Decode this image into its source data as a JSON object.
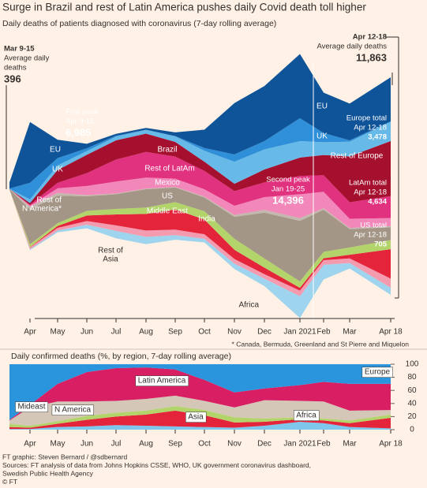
{
  "chart_data": [
    {
      "type": "stream",
      "title": "Surge in Brazil and rest of Latin America pushes daily Covid death toll higher",
      "subtitle": "Daily deaths of patients diagnosed with coronavirus (7-day rolling average)",
      "note": "* Canada, Bermuda, Greenland and St Pierre and Miquelon",
      "categories": [
        null,
        "Apr",
        "May",
        "Jun",
        "Jul",
        "Aug",
        "Sep",
        "Oct",
        "Nov",
        "Dec",
        "Jan 2021",
        "Feb",
        "Mar",
        "Apr 18"
      ],
      "callouts": [
        [
          "Mar 9-15",
          "Average daily",
          "deaths",
          "396"
        ],
        [
          "First peak",
          "Apr 9-15",
          "6,985"
        ],
        [
          "Apr 12-18",
          "Average daily deaths",
          "11,863"
        ],
        [
          "Second peak",
          "Jan 19-25",
          "14,396"
        ],
        [
          "Europe total",
          "Apr 12-18",
          "3,478"
        ],
        [
          "LatAm total",
          "Apr 12-18",
          "4,634"
        ],
        [
          "US total",
          "Apr 12-18",
          "705"
        ]
      ],
      "series": [
        {
          "labels": [
            [
              "Africa"
            ]
          ],
          "color": "#9fd4ee",
          "values": [
            0,
            50,
            100,
            200,
            400,
            400,
            250,
            200,
            300,
            400,
            1200,
            800,
            300,
            386
          ]
        },
        {
          "labels": [
            [
              "Rest of",
              "Asia"
            ]
          ],
          "color": "#f49bb0",
          "values": [
            5,
            100,
            150,
            200,
            300,
            350,
            300,
            250,
            250,
            250,
            300,
            250,
            250,
            500
          ]
        },
        {
          "labels": [
            [
              "India"
            ]
          ],
          "color": "#e3243b",
          "values": [
            0,
            20,
            100,
            300,
            600,
            900,
            1100,
            800,
            500,
            350,
            150,
            100,
            200,
            1600
          ]
        },
        {
          "labels": [
            [
              "Middle East"
            ]
          ],
          "color": "#b3d46a",
          "values": [
            5,
            150,
            150,
            250,
            300,
            350,
            400,
            450,
            600,
            500,
            350,
            350,
            400,
            500
          ]
        },
        {
          "labels": [
            [
              "US"
            ]
          ],
          "color": "#a39686",
          "values": [
            20,
            1900,
            1500,
            800,
            800,
            1000,
            800,
            750,
            1200,
            2500,
            3300,
            2300,
            1000,
            705
          ]
        },
        {
          "labels": [
            [
              "Rest of",
              "N America*"
            ]
          ],
          "color": "#c2b8ad",
          "values": [
            5,
            150,
            150,
            60,
            40,
            30,
            30,
            50,
            100,
            150,
            150,
            80,
            60,
            60
          ]
        },
        {
          "labels": [
            [
              "Mexico"
            ]
          ],
          "color": "#f288ba",
          "values": [
            0,
            50,
            250,
            500,
            650,
            600,
            450,
            400,
            500,
            700,
            1300,
            900,
            500,
            434
          ]
        },
        {
          "labels": [
            [
              "Rest of LatAm"
            ]
          ],
          "color": "#e0327f",
          "values": [
            0,
            50,
            300,
            700,
            1200,
            1400,
            1200,
            1000,
            800,
            800,
            1000,
            900,
            900,
            1200
          ]
        },
        {
          "labels": [
            [
              "Brazil"
            ]
          ],
          "color": "#a5102f",
          "values": [
            0,
            100,
            700,
            1000,
            1050,
            1000,
            800,
            500,
            400,
            700,
            1000,
            1100,
            2500,
            3000
          ]
        },
        {
          "labels": [
            [
              "Rest of Europe"
            ]
          ],
          "color": "#67b9e8",
          "values": [
            10,
            200,
            250,
            200,
            200,
            200,
            300,
            600,
            1200,
            1100,
            900,
            700,
            800,
            1048
          ]
        },
        {
          "labels": [
            [
              "UK"
            ],
            [
              "UK"
            ]
          ],
          "color": "#2f8fd8",
          "values": [
            20,
            900,
            400,
            150,
            50,
            10,
            20,
            150,
            400,
            450,
            1250,
            500,
            80,
            30
          ]
        },
        {
          "labels": [
            [
              "EU"
            ],
            [
              "EU"
            ]
          ],
          "color": "#0f5499",
          "values": [
            331,
            3315,
            1000,
            250,
            100,
            100,
            200,
            1000,
            2800,
            3000,
            3496,
            2200,
            2000,
            2400
          ]
        }
      ]
    },
    {
      "type": "stack100",
      "subtitle": "Daily confirmed deaths (%, by region, 7-day rolling average)",
      "categories": [
        null,
        "Apr",
        "May",
        "Jun",
        "Jul",
        "Aug",
        "Sep",
        "Oct",
        "Nov",
        "Dec",
        "Jan 2021",
        "Feb",
        "Mar",
        "Apr 18"
      ],
      "ylim": [
        0,
        100
      ],
      "yticks": [
        0,
        20,
        40,
        60,
        80,
        100
      ],
      "series": [
        {
          "name": "Africa",
          "color": "#7fc6ec",
          "values": [
            1,
            1,
            4,
            5,
            7,
            6,
            5,
            4,
            3,
            6,
            12,
            10,
            4,
            2
          ]
        },
        {
          "name": "Asia",
          "color": "#e3243b",
          "values": [
            3,
            2,
            5,
            10,
            13,
            17,
            24,
            18,
            8,
            6,
            4,
            4,
            6,
            16
          ]
        },
        {
          "name": "Mideast",
          "color": "#b3d46a",
          "values": [
            5,
            3,
            4,
            6,
            6,
            6,
            7,
            8,
            8,
            5,
            3,
            3,
            4,
            5
          ]
        },
        {
          "name": "N America",
          "color": "#d4c7b8",
          "values": [
            5,
            28,
            30,
            22,
            18,
            18,
            16,
            14,
            15,
            28,
            25,
            26,
            15,
            7
          ]
        },
        {
          "name": "Latin America",
          "color": "#d81f63",
          "values": [
            1,
            4,
            27,
            45,
            50,
            48,
            40,
            32,
            23,
            18,
            24,
            30,
            41,
            40
          ]
        },
        {
          "name": "Europe",
          "color": "#2a95dd",
          "values": [
            85,
            62,
            30,
            12,
            6,
            5,
            8,
            24,
            43,
            37,
            32,
            27,
            30,
            30
          ]
        }
      ]
    }
  ],
  "footer": [
    "FT graphic: Steven Bernard / @sdbernard",
    "Sources: FT analysis of data from Johns Hopkins CSSE, WHO, UK government coronavirus dashboard,",
    "Swedish Public Health Agency",
    "© FT"
  ]
}
